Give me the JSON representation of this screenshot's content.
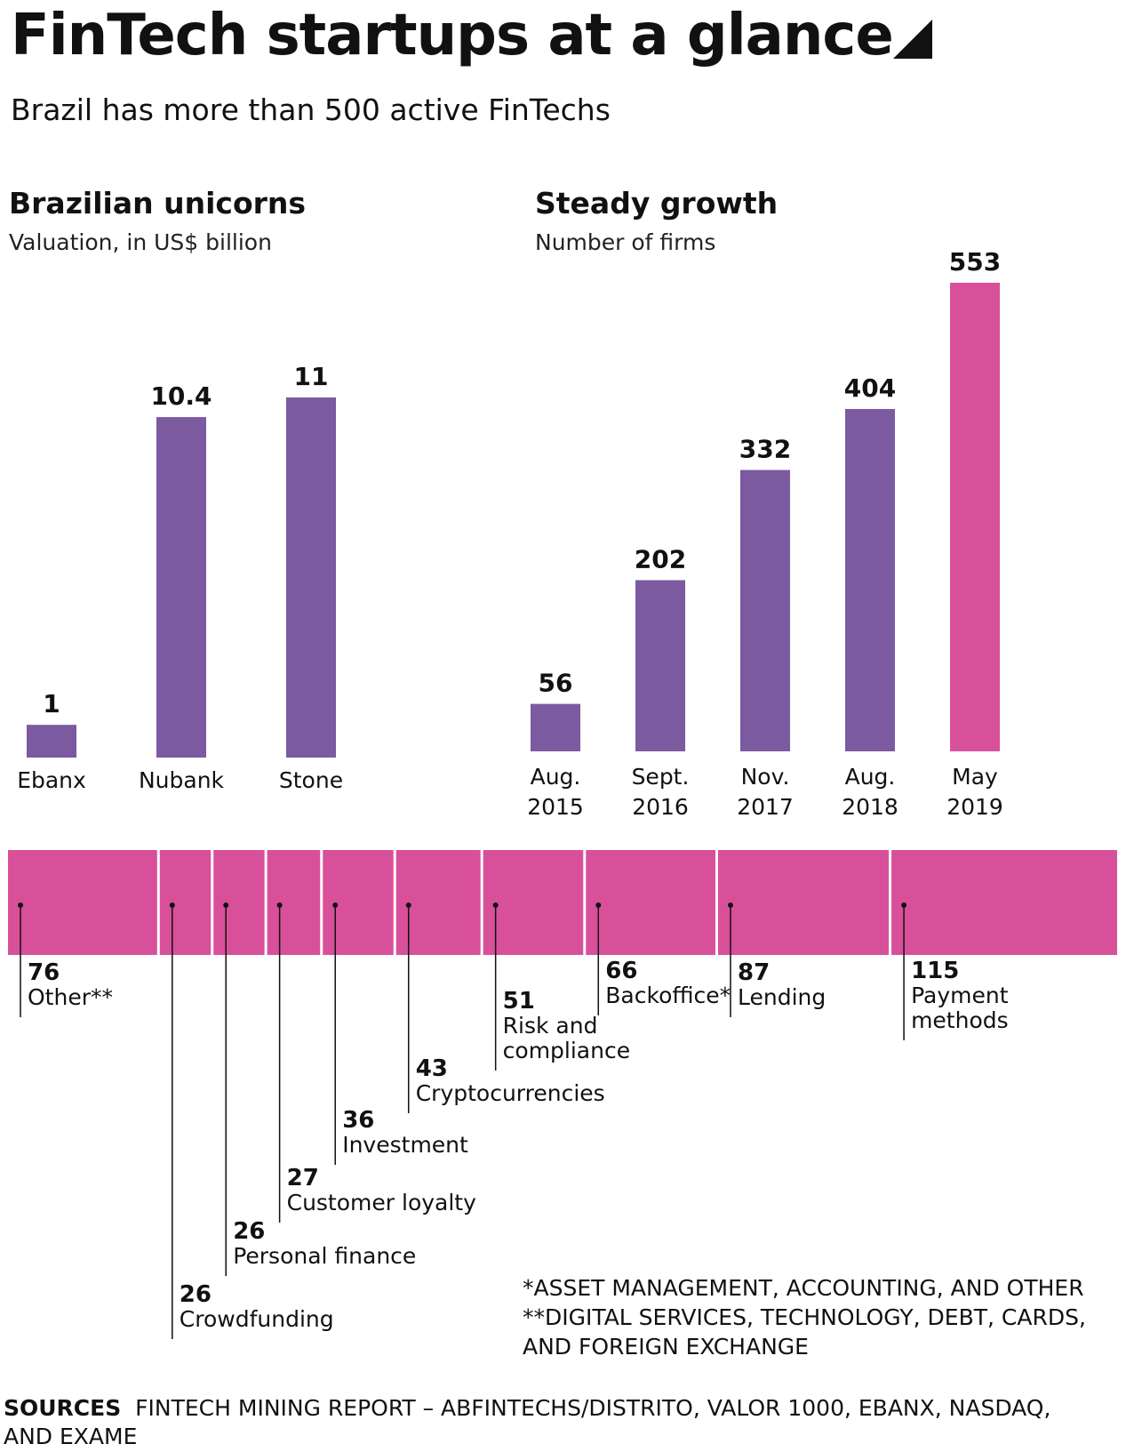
{
  "header": {
    "title": "FinTech startups at a glance",
    "subtitle": "Brazil has more than 500 active FinTechs"
  },
  "colors": {
    "purple": "#7b5aa0",
    "pink": "#d9509a",
    "text": "#111111"
  },
  "chart_data": [
    {
      "type": "bar",
      "title": "Brazilian unicorns",
      "subtitle": "Valuation, in US$ billion",
      "categories": [
        "Ebanx",
        "Nubank",
        "Stone"
      ],
      "values": [
        1,
        10.4,
        11
      ],
      "value_labels": [
        "1",
        "10.4",
        "11"
      ],
      "ylim": [
        0,
        11
      ],
      "grid": false
    },
    {
      "type": "bar",
      "title": "Steady growth",
      "subtitle": "Number of firms",
      "categories": [
        [
          "Aug.",
          "2015"
        ],
        [
          "Sept.",
          "2016"
        ],
        [
          "Nov.",
          "2017"
        ],
        [
          "Aug.",
          "2018"
        ],
        [
          "May",
          "2019"
        ]
      ],
      "values": [
        56,
        202,
        332,
        404,
        553
      ],
      "value_labels": [
        "56",
        "202",
        "332",
        "404",
        "553"
      ],
      "highlight_index": 4,
      "ylim": [
        0,
        553
      ],
      "grid": false
    },
    {
      "type": "bar",
      "orientation": "stacked-horizontal",
      "categories": [
        [
          "Other**"
        ],
        [
          "Crowdfunding"
        ],
        [
          "Personal finance"
        ],
        [
          "Customer loyalty"
        ],
        [
          "Investment"
        ],
        [
          "Cryptocurrencies"
        ],
        [
          "Risk and",
          "compliance"
        ],
        [
          "Backoffice*"
        ],
        [
          "Lending"
        ],
        [
          "Payment",
          "methods"
        ]
      ],
      "values": [
        76,
        26,
        26,
        27,
        36,
        43,
        51,
        66,
        87,
        115
      ],
      "value_labels": [
        "76",
        "26",
        "26",
        "27",
        "36",
        "43",
        "51",
        "66",
        "87",
        "115"
      ]
    }
  ],
  "footnotes": [
    "*ASSET MANAGEMENT, ACCOUNTING, AND OTHER",
    "**DIGITAL SERVICES, TECHNOLOGY, DEBT, CARDS, AND FOREIGN EXCHANGE"
  ],
  "sources": {
    "label": "SOURCES",
    "text": "FINTECH MINING REPORT – ABFINTECHS/DISTRITO, VALOR 1000, EBANX, NASDAQ, AND EXAME"
  }
}
